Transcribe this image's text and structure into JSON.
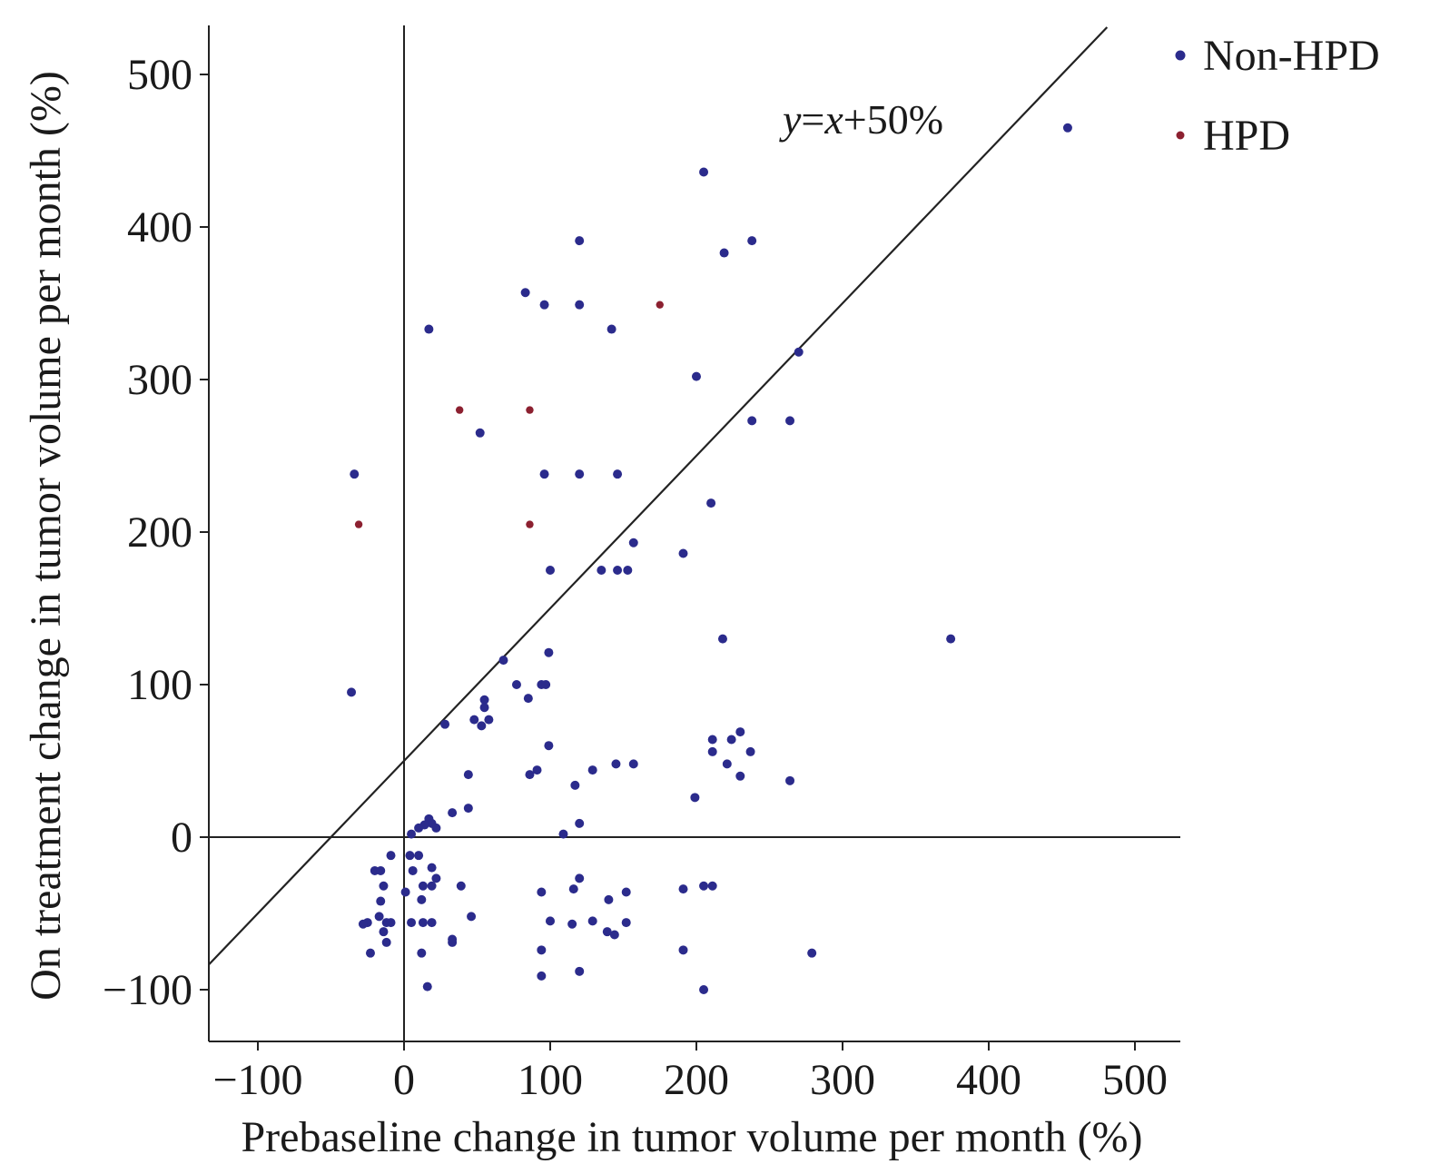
{
  "chart_data": {
    "type": "scatter",
    "xlabel": "Prebaseline change in tumor volume per month (%)",
    "ylabel": "On treatment change in tumor volume per month (%)",
    "xlim": [
      -133,
      533
    ],
    "ylim": [
      -133,
      533
    ],
    "x_ticks": [
      -100,
      0,
      100,
      200,
      300,
      400,
      500
    ],
    "y_ticks": [
      -100,
      0,
      100,
      200,
      300,
      400,
      500
    ],
    "x_tick_labels": [
      "−100",
      "0",
      "100",
      "200",
      "300",
      "400",
      "500"
    ],
    "y_tick_labels": [
      "−100",
      "0",
      "100",
      "200",
      "300",
      "400",
      "500"
    ],
    "reference_lines": {
      "x": 0,
      "y": 0
    },
    "threshold_line": {
      "slope": 1,
      "intercept": 50
    },
    "annotation": {
      "italic_y": "y",
      "eq": "=",
      "italic_x": "x",
      "rest": "+50%"
    },
    "grid": false,
    "legend_position": "top-right",
    "series": [
      {
        "name": "Non-HPD",
        "color": "#2b2b8c",
        "points": [
          [
            454,
            465
          ],
          [
            205,
            436
          ],
          [
            120,
            391
          ],
          [
            238,
            391
          ],
          [
            219,
            383
          ],
          [
            83,
            357
          ],
          [
            96,
            349
          ],
          [
            120,
            349
          ],
          [
            142,
            333
          ],
          [
            17,
            333
          ],
          [
            270,
            318
          ],
          [
            200,
            302
          ],
          [
            238,
            273
          ],
          [
            264,
            273
          ],
          [
            52,
            265
          ],
          [
            -34,
            238
          ],
          [
            96,
            238
          ],
          [
            120,
            238
          ],
          [
            146,
            238
          ],
          [
            210,
            219
          ],
          [
            157,
            193
          ],
          [
            191,
            186
          ],
          [
            135,
            175
          ],
          [
            146,
            175
          ],
          [
            153,
            175
          ],
          [
            100,
            175
          ],
          [
            218,
            130
          ],
          [
            374,
            130
          ],
          [
            -36,
            95
          ],
          [
            68,
            116
          ],
          [
            99,
            121
          ],
          [
            77,
            100
          ],
          [
            94,
            100
          ],
          [
            97,
            100
          ],
          [
            55,
            90
          ],
          [
            85,
            91
          ],
          [
            55,
            85
          ],
          [
            28,
            74
          ],
          [
            48,
            77
          ],
          [
            53,
            73
          ],
          [
            58,
            77
          ],
          [
            99,
            60
          ],
          [
            211,
            64
          ],
          [
            230,
            69
          ],
          [
            224,
            64
          ],
          [
            211,
            56
          ],
          [
            237,
            56
          ],
          [
            86,
            41
          ],
          [
            91,
            44
          ],
          [
            129,
            44
          ],
          [
            145,
            48
          ],
          [
            157,
            48
          ],
          [
            44,
            41
          ],
          [
            221,
            48
          ],
          [
            230,
            40
          ],
          [
            264,
            37
          ],
          [
            117,
            34
          ],
          [
            33,
            16
          ],
          [
            44,
            19
          ],
          [
            199,
            26
          ],
          [
            17,
            12
          ],
          [
            19,
            9
          ],
          [
            14,
            8
          ],
          [
            22,
            6
          ],
          [
            10,
            6
          ],
          [
            5,
            2
          ],
          [
            120,
            9
          ],
          [
            109,
            2
          ],
          [
            -9,
            -12
          ],
          [
            4,
            -12
          ],
          [
            10,
            -12
          ],
          [
            -20,
            -22
          ],
          [
            -16,
            -22
          ],
          [
            6,
            -22
          ],
          [
            19,
            -20
          ],
          [
            22,
            -27
          ],
          [
            120,
            -27
          ],
          [
            -14,
            -32
          ],
          [
            13,
            -32
          ],
          [
            19,
            -32
          ],
          [
            39,
            -32
          ],
          [
            94,
            -36
          ],
          [
            116,
            -34
          ],
          [
            152,
            -36
          ],
          [
            191,
            -34
          ],
          [
            205,
            -32
          ],
          [
            211,
            -32
          ],
          [
            1,
            -36
          ],
          [
            12,
            -41
          ],
          [
            -16,
            -42
          ],
          [
            140,
            -41
          ],
          [
            -17,
            -52
          ],
          [
            -25,
            -56
          ],
          [
            -12,
            -56
          ],
          [
            -9,
            -56
          ],
          [
            5,
            -56
          ],
          [
            13,
            -56
          ],
          [
            19,
            -56
          ],
          [
            46,
            -52
          ],
          [
            100,
            -55
          ],
          [
            115,
            -57
          ],
          [
            129,
            -55
          ],
          [
            152,
            -56
          ],
          [
            -28,
            -57
          ],
          [
            -14,
            -62
          ],
          [
            -12,
            -69
          ],
          [
            33,
            -67
          ],
          [
            -23,
            -76
          ],
          [
            12,
            -76
          ],
          [
            94,
            -74
          ],
          [
            139,
            -62
          ],
          [
            144,
            -64
          ],
          [
            191,
            -74
          ],
          [
            279,
            -76
          ],
          [
            33,
            -69
          ],
          [
            94,
            -91
          ],
          [
            120,
            -88
          ],
          [
            16,
            -98
          ],
          [
            205,
            -100
          ]
        ]
      },
      {
        "name": "HPD",
        "color": "#8c2030",
        "points": [
          [
            175,
            349
          ],
          [
            38,
            280
          ],
          [
            86,
            280
          ],
          [
            -31,
            205
          ],
          [
            86,
            205
          ]
        ]
      }
    ]
  }
}
